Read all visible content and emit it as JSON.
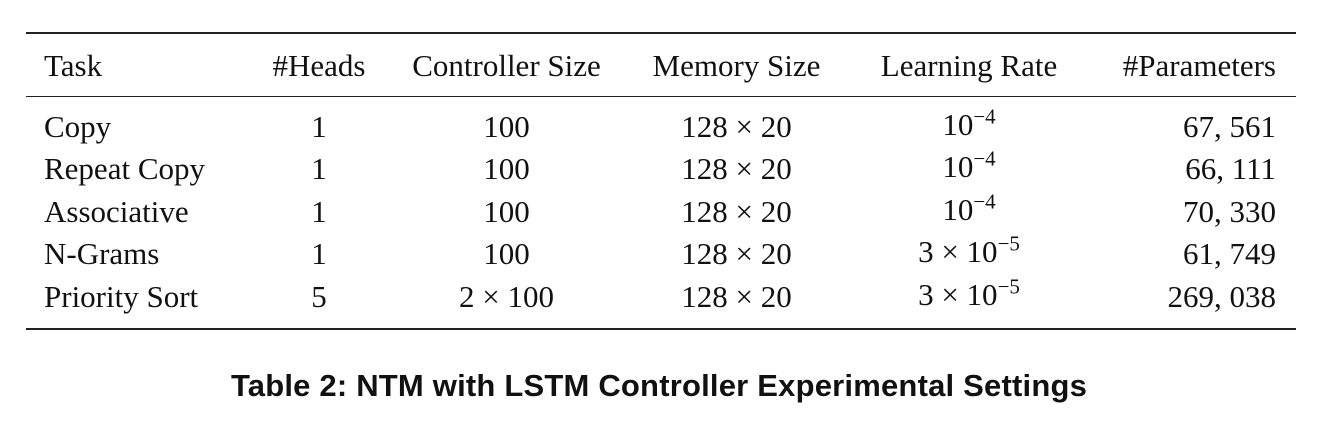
{
  "table": {
    "headers": {
      "task": "Task",
      "heads": "#Heads",
      "controller": "Controller Size",
      "memory": "Memory Size",
      "lr": "Learning Rate",
      "params": "#Parameters"
    },
    "rows": [
      {
        "task": "Copy",
        "heads": "1",
        "controller": "100",
        "memory": "128 × 20",
        "lr_base": "10",
        "lr_exp": "−4",
        "params": "67, 561"
      },
      {
        "task": "Repeat Copy",
        "heads": "1",
        "controller": "100",
        "memory": "128 × 20",
        "lr_base": "10",
        "lr_exp": "−4",
        "params": "66, 111"
      },
      {
        "task": "Associative",
        "heads": "1",
        "controller": "100",
        "memory": "128 × 20",
        "lr_base": "10",
        "lr_exp": "−4",
        "params": "70, 330"
      },
      {
        "task": "N-Grams",
        "heads": "1",
        "controller": "100",
        "memory": "128 × 20",
        "lr_base": "3 × 10",
        "lr_exp": "−5",
        "params": "61, 749"
      },
      {
        "task": "Priority Sort",
        "heads": "5",
        "controller": "2 × 100",
        "memory": "128 × 20",
        "lr_base": "3 × 10",
        "lr_exp": "−5",
        "params": "269, 038"
      }
    ]
  },
  "caption": "Table 2: NTM with LSTM Controller Experimental Settings"
}
